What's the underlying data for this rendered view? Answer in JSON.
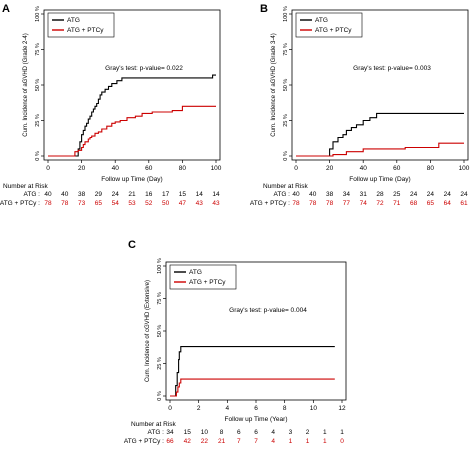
{
  "chart_data": [
    {
      "panel": "A",
      "type": "line",
      "step": true,
      "ylabel": "Cum. Incidence of aGVHD (Grade 2-4)",
      "xlabel": "Follow up Time (Day)",
      "x_ticks": [
        0,
        20,
        40,
        60,
        80,
        100
      ],
      "y_ticks": [
        "0 %",
        "25 %",
        "50 %",
        "75 %",
        "100 %"
      ],
      "xlim": [
        0,
        100
      ],
      "ylim": [
        0,
        100
      ],
      "annotation": "Gray's test: p-value= 0.022",
      "legend": {
        "placement": "top-left"
      },
      "series": [
        {
          "name": "ATG",
          "color": "#000000",
          "x": [
            0,
            14,
            18,
            19,
            20,
            21,
            22,
            23,
            24,
            25,
            26,
            27,
            28,
            29,
            30,
            31,
            32,
            34,
            36,
            38,
            41,
            44,
            52,
            60,
            64,
            68,
            72,
            80,
            85,
            98,
            100
          ],
          "y": [
            0,
            0,
            5,
            10,
            15,
            18,
            21,
            23,
            26,
            28,
            31,
            33,
            35,
            37,
            40,
            43,
            45,
            47,
            49,
            51,
            53,
            55,
            55,
            55,
            55,
            55,
            55,
            55,
            55,
            57,
            57
          ]
        },
        {
          "name": "ATG + PTCy",
          "color": "#cc0000",
          "x": [
            0,
            14,
            16,
            18,
            20,
            21,
            22,
            24,
            25,
            26,
            28,
            30,
            32,
            35,
            38,
            40,
            43,
            47,
            52,
            56,
            62,
            74,
            80,
            100
          ],
          "y": [
            0,
            0,
            3,
            4,
            6,
            8,
            10,
            12,
            13,
            14,
            16,
            17,
            19,
            21,
            23,
            24,
            25,
            27,
            28,
            30,
            31,
            32,
            35,
            35
          ]
        }
      ],
      "risk_table": {
        "title": "Number at Risk",
        "rows": [
          {
            "label": "ATG",
            "color": "#000000",
            "values": [
              "40",
              "40",
              "38",
              "29",
              "24",
              "21",
              "16",
              "17",
              "15",
              "14",
              "14"
            ]
          },
          {
            "label": "ATG + PTCy",
            "color": "#cc0000",
            "values": [
              "78",
              "78",
              "73",
              "65",
              "54",
              "53",
              "52",
              "50",
              "47",
              "43",
              "43"
            ]
          }
        ]
      }
    },
    {
      "panel": "B",
      "type": "line",
      "step": true,
      "ylabel": "Cum. Incidence of aGVHD (Grade 3-4)",
      "xlabel": "Follow up Time (Day)",
      "x_ticks": [
        0,
        20,
        40,
        60,
        80,
        100
      ],
      "y_ticks": [
        "0 %",
        "25 %",
        "50 %",
        "75 %",
        "100 %"
      ],
      "xlim": [
        0,
        100
      ],
      "ylim": [
        0,
        100
      ],
      "annotation": "Gray's test: p-value= 0.003",
      "legend": {
        "placement": "top-left"
      },
      "series": [
        {
          "name": "ATG",
          "color": "#000000",
          "x": [
            0,
            19,
            20,
            22,
            25,
            28,
            30,
            33,
            36,
            40,
            44,
            48,
            100
          ],
          "y": [
            0,
            0,
            5,
            10,
            13,
            15,
            18,
            20,
            22,
            25,
            27,
            30,
            30
          ]
        },
        {
          "name": "ATG + PTCy",
          "color": "#cc0000",
          "x": [
            0,
            20,
            22,
            30,
            40,
            65,
            85,
            100
          ],
          "y": [
            0,
            0,
            1,
            3,
            5,
            6,
            9,
            9
          ]
        }
      ],
      "risk_table": {
        "title": "Number at Risk",
        "rows": [
          {
            "label": "ATG",
            "color": "#000000",
            "values": [
              "40",
              "40",
              "38",
              "34",
              "31",
              "28",
              "25",
              "24",
              "24",
              "24",
              "24"
            ]
          },
          {
            "label": "ATG + PTCy",
            "color": "#cc0000",
            "values": [
              "78",
              "78",
              "78",
              "77",
              "74",
              "72",
              "71",
              "68",
              "65",
              "64",
              "61"
            ]
          }
        ]
      }
    },
    {
      "panel": "C",
      "type": "line",
      "step": true,
      "ylabel": "Cum. Incidence of cGVHD (Extensive)",
      "xlabel": "Follow up Time (Year)",
      "x_ticks": [
        0,
        2,
        4,
        6,
        8,
        10,
        12
      ],
      "y_ticks": [
        "0 %",
        "25 %",
        "50 %",
        "75 %",
        "100 %"
      ],
      "xlim": [
        0,
        12
      ],
      "ylim": [
        0,
        100
      ],
      "annotation": "Gray's test: p-value= 0.004",
      "legend": {
        "placement": "top-left"
      },
      "series": [
        {
          "name": "ATG",
          "color": "#000000",
          "x": [
            0,
            0.3,
            0.4,
            0.5,
            0.6,
            0.65,
            0.75,
            11.5
          ],
          "y": [
            0,
            0,
            8,
            18,
            28,
            34,
            38,
            38
          ]
        },
        {
          "name": "ATG + PTCy",
          "color": "#cc0000",
          "x": [
            0,
            0.3,
            0.45,
            0.55,
            0.65,
            0.75,
            11.5
          ],
          "y": [
            0,
            0,
            3,
            7,
            10,
            13,
            13
          ]
        }
      ],
      "risk_table": {
        "title": "Number at Risk",
        "rows": [
          {
            "label": "ATG",
            "color": "#000000",
            "values": [
              "34",
              "15",
              "10",
              "8",
              "6",
              "6",
              "4",
              "3",
              "2",
              "1",
              "1"
            ]
          },
          {
            "label": "ATG + PTCy",
            "color": "#cc0000",
            "values": [
              "66",
              "42",
              "22",
              "21",
              "7",
              "7",
              "4",
              "1",
              "1",
              "1",
              "0"
            ]
          }
        ]
      }
    }
  ]
}
